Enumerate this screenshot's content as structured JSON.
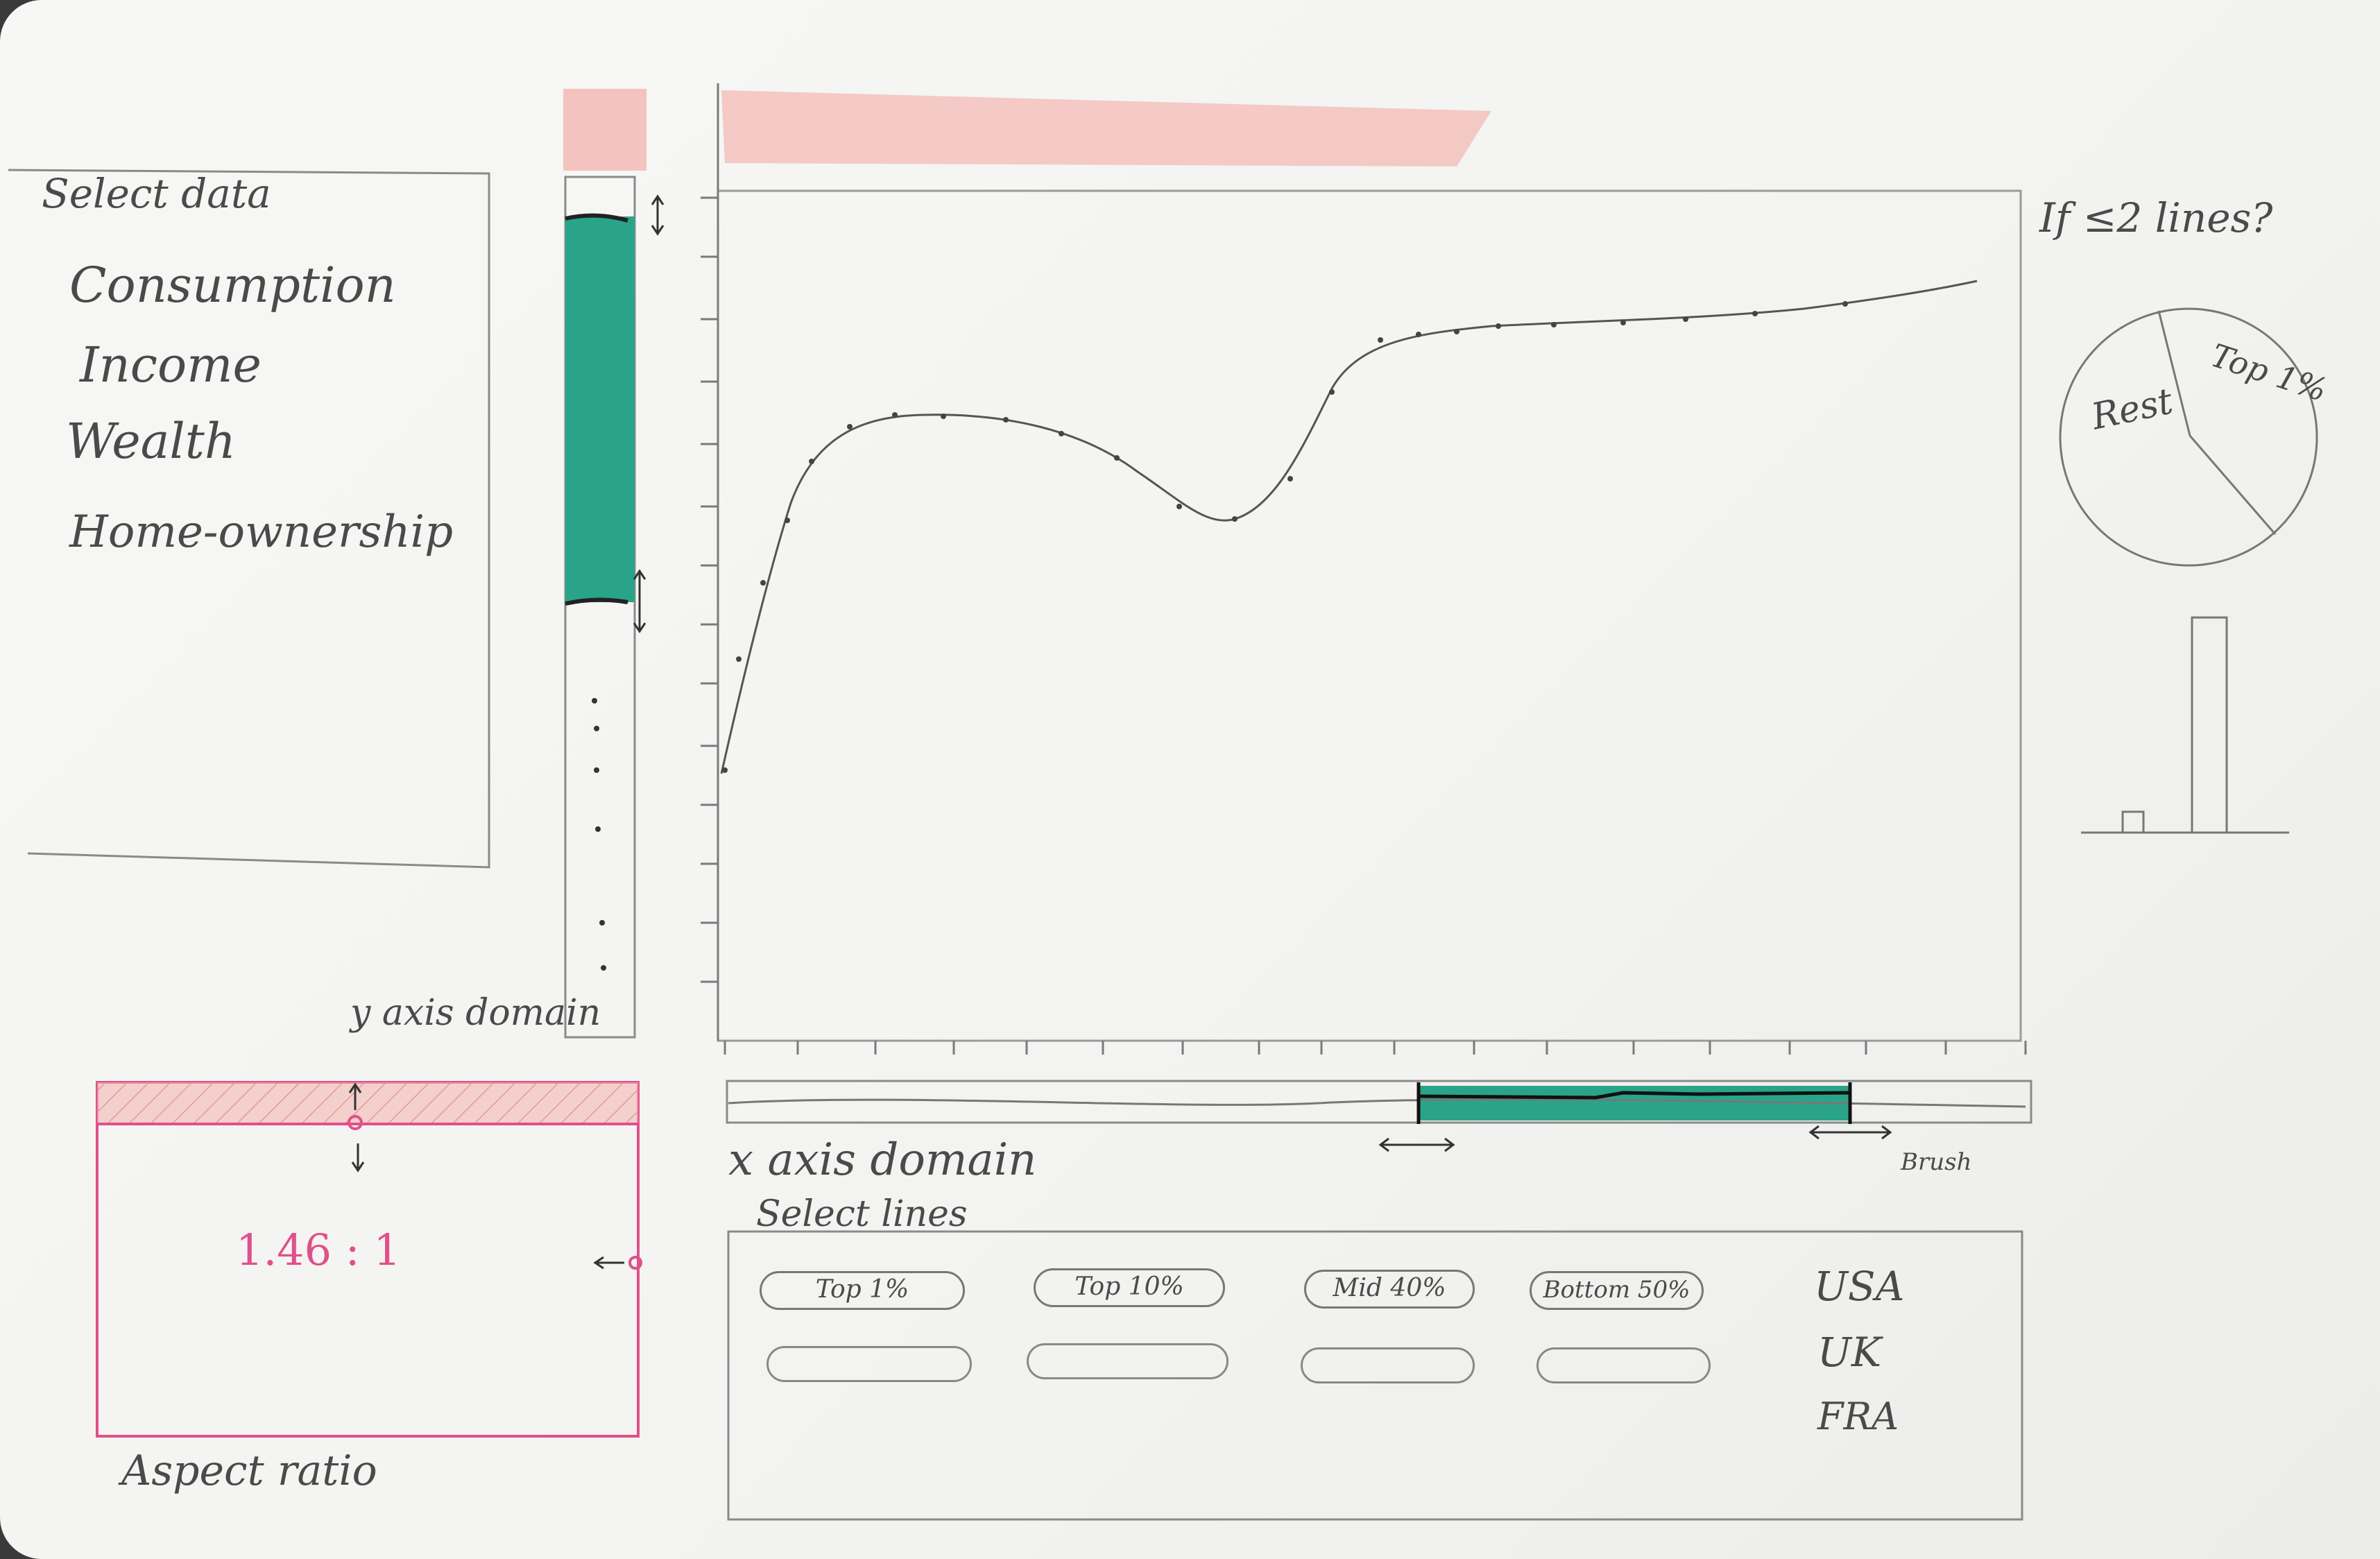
{
  "select_data": {
    "title": "Select data",
    "items": [
      "Consumption",
      "Income",
      "Wealth",
      "Home-ownership"
    ]
  },
  "y_axis_domain_label": "y axis domain",
  "x_axis_domain_label": "x axis domain",
  "brush_label": "Brush",
  "aspect": {
    "value": "1.46 : 1",
    "label": "Aspect ratio"
  },
  "select_lines": {
    "title": "Select lines",
    "row1": [
      "Top 1%",
      "Top 10%",
      "Mid 40%",
      "Bottom 50%"
    ],
    "countries": [
      "USA",
      "UK",
      "FRA"
    ]
  },
  "side_note": "If ≤2 lines?",
  "pie": {
    "labels": [
      "Rest",
      "Top 1%"
    ]
  },
  "colors": {
    "teal": "#2aa489",
    "pink": "#e0508a",
    "pencil": "#6a6a6a",
    "red_wash": "#f2a9a3"
  }
}
